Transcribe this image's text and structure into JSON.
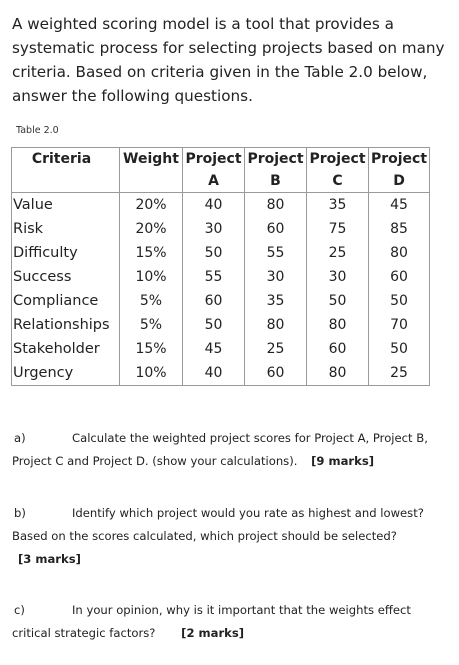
{
  "intro": "A weighted scoring model is a tool that provides a systematic process for selecting projects based on many criteria. Based on criteria given in the Table 2.0 below, answer the following questions.",
  "caption": "Table 2.0",
  "table": {
    "headers": {
      "criteria": "Criteria",
      "weight": "Weight",
      "projects_top": [
        "Project",
        "Project",
        "Project",
        "Project"
      ],
      "projects_bottom": [
        "A",
        "B",
        "C",
        "D"
      ]
    },
    "rows": [
      {
        "name": "Value",
        "weight": "20%",
        "a": "40",
        "b": "80",
        "c": "35",
        "d": "45"
      },
      {
        "name": "Risk",
        "weight": "20%",
        "a": "30",
        "b": "60",
        "c": "75",
        "d": "85"
      },
      {
        "name": "Difficulty",
        "weight": "15%",
        "a": "50",
        "b": "55",
        "c": "25",
        "d": "80"
      },
      {
        "name": "Success",
        "weight": "10%",
        "a": "55",
        "b": "30",
        "c": "30",
        "d": "60"
      },
      {
        "name": "Compliance",
        "weight": "5%",
        "a": "60",
        "b": "35",
        "c": "50",
        "d": "50"
      },
      {
        "name": "Relationships",
        "weight": "5%",
        "a": "50",
        "b": "80",
        "c": "80",
        "d": "70"
      },
      {
        "name": "Stakeholder",
        "weight": "15%",
        "a": "45",
        "b": "25",
        "c": "60",
        "d": "50"
      },
      {
        "name": "Urgency",
        "weight": "10%",
        "a": "40",
        "b": "60",
        "c": "80",
        "d": "25"
      }
    ]
  },
  "questions": {
    "a": {
      "label": "a)",
      "text": "Calculate the weighted project scores for Project A, Project B, Project C and Project D. (show your calculations).",
      "marks": "[9 marks]"
    },
    "b": {
      "label": "b)",
      "text": "Identify which project would you rate as highest and lowest? Based on the scores calculated, which project should be selected?",
      "marks": "[3 marks]"
    },
    "c": {
      "label": "c)",
      "text": "In your opinion, why is it important that the weights effect critical strategic factors?",
      "marks": "[2 marks]"
    }
  }
}
